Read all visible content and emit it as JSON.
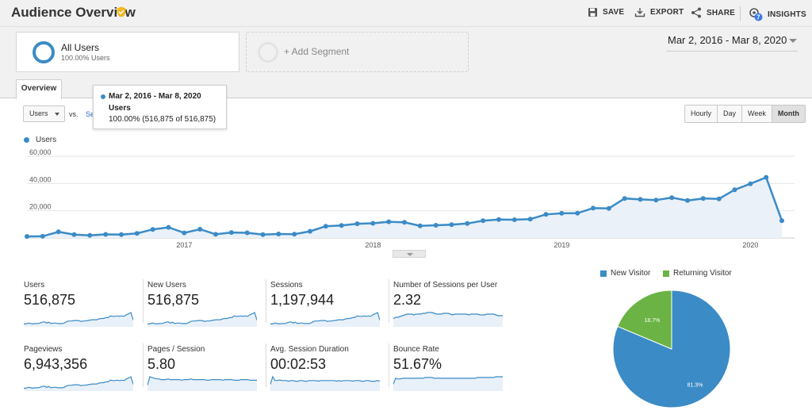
{
  "header": {
    "title": "Audience Overview",
    "actions": [
      {
        "label": "SAVE",
        "icon": "save-icon"
      },
      {
        "label": "EXPORT",
        "icon": "export-icon"
      },
      {
        "label": "SHARE",
        "icon": "share-icon"
      },
      {
        "label": "INSIGHTS",
        "icon": "insights-icon",
        "badge": "7"
      }
    ]
  },
  "segments": {
    "active": {
      "name": "All Users",
      "percent": "100.00% Users"
    },
    "add_label": "+ Add Segment"
  },
  "date_range": "Mar 2, 2016 - Mar 8, 2020",
  "tabs": [
    {
      "label": "Overview"
    }
  ],
  "controls": {
    "metric": "Users",
    "vs": "vs.",
    "select_metric": "Se",
    "granularity": [
      "Hourly",
      "Day",
      "Week",
      "Month"
    ],
    "active_granularity": "Month"
  },
  "tooltip": {
    "date": "Mar 2, 2016 - Mar 8, 2020",
    "metric": "Users",
    "value": "100.00% (516,875 of 516,875)"
  },
  "chart_data": [
    {
      "type": "area",
      "series": [
        {
          "name": "Users",
          "color": "#3b8bc6",
          "values": [
            1100,
            1200,
            4500,
            2500,
            1900,
            2600,
            2500,
            3400,
            6300,
            7800,
            3700,
            6400,
            2700,
            4000,
            3800,
            2500,
            2900,
            2800,
            4900,
            8600,
            9200,
            10400,
            10800,
            11900,
            11500,
            8900,
            9300,
            9800,
            10600,
            12700,
            13500,
            13400,
            13800,
            17300,
            18100,
            18200,
            21900,
            21700,
            29000,
            28300,
            27800,
            29600,
            27500,
            29000,
            28700,
            35400,
            39800,
            44500,
            12700
          ]
        }
      ],
      "x_axis_labels": [
        "2017",
        "2018",
        "2019",
        "2020"
      ],
      "y_axis_labels": [
        "20,000",
        "40,000",
        "60,000"
      ],
      "ylim": [
        0,
        60000
      ],
      "legend": "top-left",
      "grid": true
    },
    {
      "type": "pie",
      "slices": [
        {
          "label": "New Visitor",
          "value": 81.3,
          "display": "81.3%",
          "color": "#3b8bc6"
        },
        {
          "label": "Returning Visitor",
          "value": 18.7,
          "display": "18.7%",
          "color": "#6ab344"
        }
      ],
      "legend": "top"
    }
  ],
  "metrics": [
    {
      "label": "Users",
      "value": "516,875",
      "spark": [
        3,
        3,
        5,
        4,
        3,
        4,
        4,
        5,
        7,
        8,
        5,
        7,
        4,
        5,
        5,
        4,
        4,
        4,
        6,
        9,
        10,
        10,
        11,
        11,
        11,
        9,
        10,
        10,
        11,
        12,
        13,
        13,
        13,
        15,
        16,
        16,
        18,
        18,
        22,
        21,
        21,
        22,
        21,
        22,
        21,
        25,
        27,
        30,
        12
      ]
    },
    {
      "label": "New Users",
      "value": "516,875",
      "spark": [
        3,
        3,
        5,
        4,
        3,
        4,
        4,
        5,
        7,
        8,
        5,
        7,
        4,
        5,
        5,
        4,
        4,
        4,
        6,
        9,
        10,
        10,
        11,
        11,
        11,
        9,
        10,
        10,
        11,
        12,
        13,
        13,
        13,
        15,
        16,
        16,
        18,
        18,
        22,
        21,
        21,
        22,
        21,
        22,
        21,
        25,
        27,
        30,
        12
      ]
    },
    {
      "label": "Sessions",
      "value": "1,197,944",
      "spark": [
        3,
        3,
        5,
        4,
        3,
        4,
        4,
        5,
        7,
        8,
        5,
        7,
        4,
        5,
        5,
        4,
        4,
        4,
        6,
        9,
        10,
        10,
        11,
        11,
        11,
        9,
        10,
        10,
        11,
        12,
        13,
        13,
        13,
        15,
        16,
        16,
        18,
        18,
        22,
        21,
        21,
        22,
        21,
        22,
        21,
        25,
        27,
        30,
        12
      ]
    },
    {
      "label": "Number of Sessions per User",
      "value": "2.32",
      "spark": [
        8,
        10,
        10,
        11,
        12,
        13,
        14,
        14,
        14,
        13,
        14,
        14,
        14,
        15,
        15,
        16,
        16,
        16,
        15,
        14,
        14,
        14,
        15,
        15,
        15,
        14,
        13,
        14,
        14,
        14,
        14,
        14,
        14,
        13,
        14,
        14,
        14,
        14,
        13,
        13,
        13,
        14,
        14,
        14,
        14,
        13,
        12,
        12,
        12
      ]
    },
    {
      "label": "Pageviews",
      "value": "6,943,356",
      "spark": [
        3,
        3,
        5,
        4,
        3,
        4,
        4,
        5,
        7,
        8,
        5,
        7,
        4,
        5,
        5,
        4,
        4,
        4,
        6,
        9,
        10,
        10,
        11,
        11,
        11,
        9,
        10,
        10,
        11,
        12,
        13,
        13,
        13,
        15,
        16,
        16,
        18,
        18,
        22,
        21,
        21,
        22,
        21,
        22,
        21,
        25,
        27,
        30,
        12
      ]
    },
    {
      "label": "Pages / Session",
      "value": "5.80",
      "spark": [
        6,
        18,
        17,
        16,
        15,
        15,
        14,
        14,
        14,
        15,
        14,
        14,
        14,
        14,
        14,
        13,
        14,
        14,
        14,
        15,
        14,
        14,
        14,
        14,
        14,
        14,
        13,
        13,
        14,
        14,
        14,
        14,
        14,
        13,
        14,
        14,
        14,
        14,
        13,
        13,
        13,
        14,
        14,
        14,
        14,
        13,
        13,
        13,
        13
      ]
    },
    {
      "label": "Avg. Session Duration",
      "value": "00:02:53",
      "spark": [
        8,
        20,
        14,
        14,
        15,
        14,
        14,
        14,
        13,
        14,
        14,
        13,
        13,
        14,
        14,
        13,
        13,
        14,
        14,
        14,
        14,
        13,
        14,
        14,
        14,
        14,
        14,
        14,
        14,
        13,
        14,
        13,
        14,
        14,
        14,
        14,
        13,
        14,
        14,
        14,
        13,
        13,
        14,
        14,
        13,
        13,
        13,
        14,
        13
      ]
    },
    {
      "label": "Bounce Rate",
      "value": "51.67%",
      "spark": [
        7,
        15,
        14,
        14,
        15,
        15,
        15,
        15,
        15,
        15,
        15,
        15,
        15,
        15,
        16,
        16,
        16,
        16,
        15,
        15,
        15,
        15,
        15,
        15,
        15,
        15,
        15,
        15,
        15,
        15,
        15,
        15,
        15,
        15,
        15,
        15,
        15,
        16,
        16,
        16,
        16,
        16,
        16,
        16,
        16,
        17,
        17,
        17,
        17
      ]
    }
  ]
}
